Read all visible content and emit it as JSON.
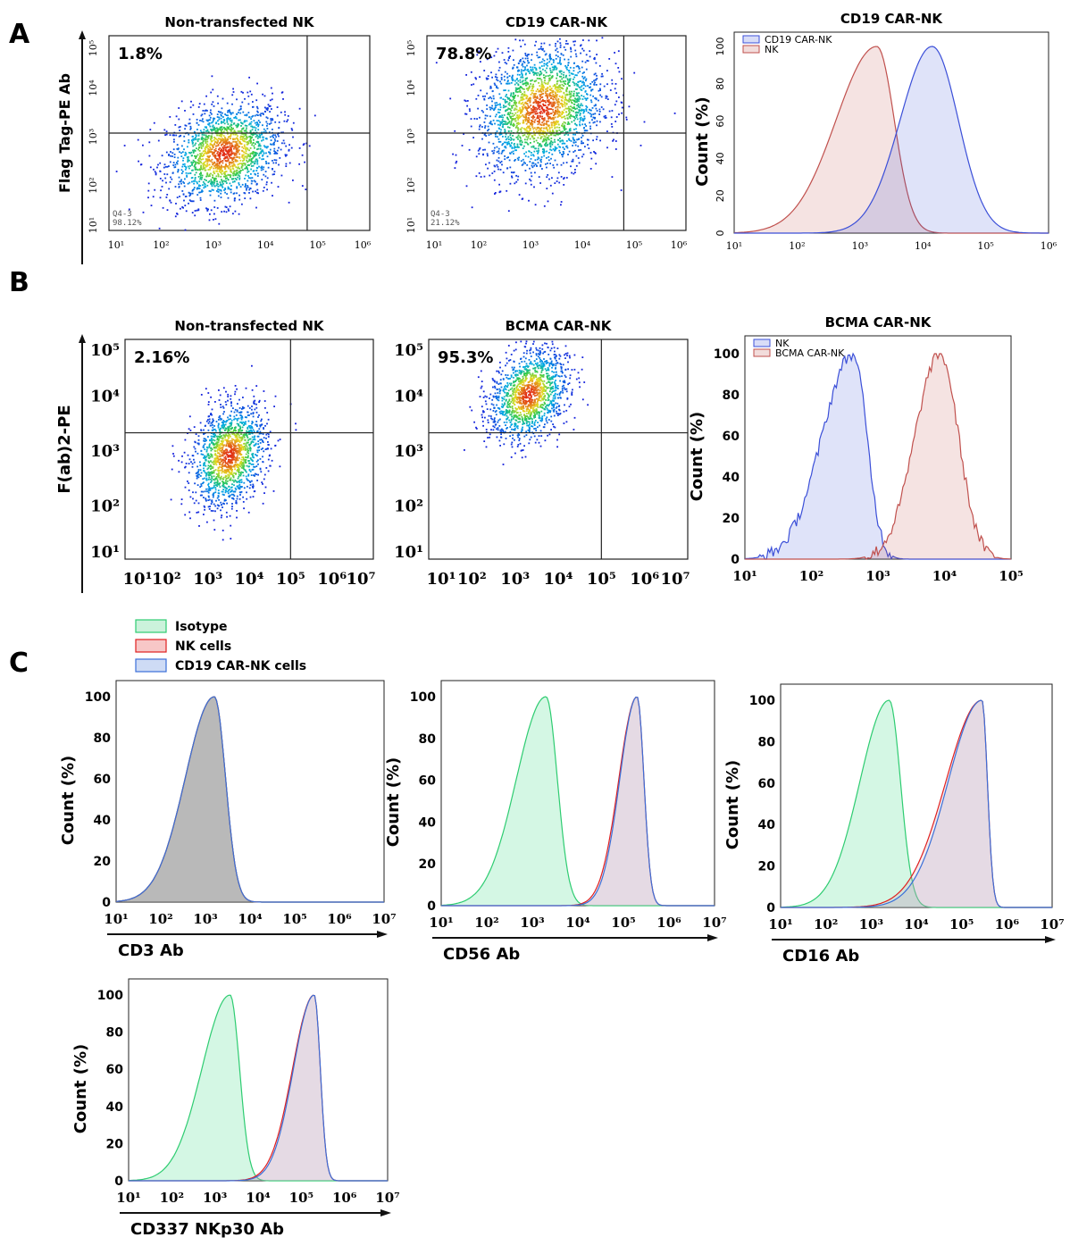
{
  "panels": {
    "A": "A",
    "B": "B",
    "C": "C"
  },
  "colors": {
    "nk_red": "#c0504d",
    "car_blue": "#3b4fd8",
    "isotype_green": "#2ecc71",
    "grid": "#222222"
  },
  "chart_data": [
    {
      "id": "A1",
      "type": "scatter",
      "title": "Non-transfected NK",
      "ylabel": "Flag Tag-PE Ab",
      "xlim_log10": [
        1,
        6
      ],
      "ylim_log10": [
        1,
        5
      ],
      "x_ticks": [
        "10¹",
        "10²",
        "10³",
        "10⁴",
        "10⁵",
        "10⁶"
      ],
      "y_ticks": [
        "10¹",
        "10²",
        "10³",
        "10⁴",
        "10⁵"
      ],
      "gate_x_log10": 4.8,
      "gate_y_log10": 3.0,
      "upper_left_percent": "1.8%",
      "gate_label": "Q4-3",
      "gate_percent": "98.12%",
      "cloud": {
        "center_x_log10": 3.2,
        "center_y_log10": 2.6,
        "spread_x": 0.55,
        "spread_y": 0.5,
        "points": 1800
      }
    },
    {
      "id": "A2",
      "type": "scatter",
      "title": "CD19 CAR-NK",
      "xlim_log10": [
        1,
        6
      ],
      "ylim_log10": [
        1,
        5
      ],
      "x_ticks": [
        "10¹",
        "10²",
        "10³",
        "10⁴",
        "10⁵",
        "10⁶"
      ],
      "y_ticks": [
        "10¹",
        "10²",
        "10³",
        "10⁴",
        "10⁵"
      ],
      "gate_x_log10": 4.8,
      "gate_y_log10": 3.0,
      "upper_left_percent": "78.8%",
      "gate_label": "Q4-3",
      "gate_percent": "21.12%",
      "cloud": {
        "center_x_log10": 3.2,
        "center_y_log10": 3.5,
        "spread_x": 0.6,
        "spread_y": 0.65,
        "points": 2200
      }
    },
    {
      "id": "A3",
      "type": "area",
      "title": "CD19 CAR-NK",
      "ylabel": "Count (%)",
      "xlim_log10": [
        0.6,
        6
      ],
      "x_ticks": [
        "10¹",
        "10²",
        "10³",
        "10⁴",
        "10⁵",
        "10⁶"
      ],
      "y_ticks": [
        "0",
        "20",
        "40",
        "60",
        "80",
        "100"
      ],
      "ylim": [
        0,
        100
      ],
      "legend": [
        "CD19 CAR-NK",
        "NK"
      ],
      "series": [
        {
          "name": "NK",
          "color": "#c0504d",
          "peak_log10": 3.05,
          "sigma_left": 0.7,
          "sigma_right": 0.3
        },
        {
          "name": "CD19 CAR-NK",
          "color": "#3b4fd8",
          "peak_log10": 4.0,
          "sigma_left": 0.55,
          "sigma_right": 0.45
        }
      ]
    },
    {
      "id": "B1",
      "type": "scatter",
      "title": "Non-transfected NK",
      "ylabel": "F(ab)2-PE",
      "xlim_log10": [
        1,
        7
      ],
      "ylim_log10": [
        1,
        5
      ],
      "x_ticks": [
        "10¹",
        "10²",
        "10³",
        "10⁴",
        "10⁵",
        "10⁶",
        "10⁷"
      ],
      "y_ticks": [
        "10¹",
        "10²",
        "10³",
        "10⁴",
        "10⁵"
      ],
      "gate_x_log10": 5.0,
      "gate_y_log10": 3.3,
      "upper_left_percent": "2.16%",
      "cloud": {
        "center_x_log10": 3.5,
        "center_y_log10": 2.9,
        "spread_x": 0.45,
        "spread_y": 0.45,
        "points": 1500
      }
    },
    {
      "id": "B2",
      "type": "scatter",
      "title": "BCMA CAR-NK",
      "xlim_log10": [
        1,
        7
      ],
      "ylim_log10": [
        1,
        5
      ],
      "x_ticks": [
        "10¹",
        "10²",
        "10³",
        "10⁴",
        "10⁵",
        "10⁶",
        "10⁷"
      ],
      "y_ticks": [
        "10¹",
        "10²",
        "10³",
        "10⁴",
        "10⁵"
      ],
      "gate_x_log10": 5.0,
      "gate_y_log10": 3.3,
      "upper_left_percent": "95.3%",
      "cloud": {
        "center_x_log10": 3.3,
        "center_y_log10": 4.0,
        "spread_x": 0.45,
        "spread_y": 0.4,
        "points": 1400
      }
    },
    {
      "id": "B3",
      "type": "area",
      "title": "BCMA CAR-NK",
      "ylabel": "Count (%)",
      "xlim_log10": [
        1,
        5.3
      ],
      "x_ticks": [
        "10¹",
        "10²",
        "10³",
        "10⁴",
        "10⁵"
      ],
      "y_ticks": [
        "0",
        "20",
        "40",
        "60",
        "80",
        "100"
      ],
      "ylim": [
        0,
        100
      ],
      "legend": [
        "NK",
        "BCMA CAR-NK"
      ],
      "series": [
        {
          "name": "NK",
          "color": "#3b4fd8",
          "peak_log10": 2.75,
          "sigma_left": 0.5,
          "sigma_right": 0.22
        },
        {
          "name": "BCMA CAR-NK",
          "color": "#c0504d",
          "peak_log10": 4.15,
          "sigma_left": 0.4,
          "sigma_right": 0.3
        }
      ]
    },
    {
      "id": "C1",
      "type": "area",
      "xlabel": "CD3 Ab",
      "ylabel": "Count (%)",
      "xlim_log10": [
        1,
        7
      ],
      "x_ticks": [
        "10¹",
        "10²",
        "10³",
        "10⁴",
        "10⁵",
        "10⁶",
        "10⁷"
      ],
      "y_ticks": [
        "0",
        "20",
        "40",
        "60",
        "80",
        "100"
      ],
      "ylim": [
        0,
        100
      ],
      "series": [
        {
          "name": "Isotype",
          "color": "#2ecc71",
          "peak_log10": 3.2,
          "sigma_left": 0.65,
          "sigma_right": 0.25
        },
        {
          "name": "NK cells",
          "color": "#e02020",
          "peak_log10": 3.2,
          "sigma_left": 0.65,
          "sigma_right": 0.25
        },
        {
          "name": "CD19 CAR-NK cells",
          "color": "#3b6fd8",
          "peak_log10": 3.2,
          "sigma_left": 0.65,
          "sigma_right": 0.25
        }
      ]
    },
    {
      "id": "C2",
      "type": "area",
      "xlabel": "CD56 Ab",
      "ylabel": "Count (%)",
      "xlim_log10": [
        1,
        7
      ],
      "x_ticks": [
        "10¹",
        "10²",
        "10³",
        "10⁴",
        "10⁵",
        "10⁶",
        "10⁷"
      ],
      "y_ticks": [
        "0",
        "20",
        "40",
        "60",
        "80",
        "100"
      ],
      "ylim": [
        0,
        100
      ],
      "series": [
        {
          "name": "Isotype",
          "color": "#2ecc71",
          "peak_log10": 3.3,
          "sigma_left": 0.65,
          "sigma_right": 0.25
        },
        {
          "name": "NK cells",
          "color": "#e02020",
          "peak_log10": 5.3,
          "sigma_left": 0.4,
          "sigma_right": 0.15
        },
        {
          "name": "CD19 CAR-NK cells",
          "color": "#3b6fd8",
          "peak_log10": 5.3,
          "sigma_left": 0.38,
          "sigma_right": 0.15
        }
      ]
    },
    {
      "id": "C3",
      "type": "area",
      "xlabel": "CD16 Ab",
      "ylabel": "Count (%)",
      "xlim_log10": [
        1,
        7
      ],
      "x_ticks": [
        "10¹",
        "10²",
        "10³",
        "10⁴",
        "10⁵",
        "10⁶",
        "10⁷"
      ],
      "y_ticks": [
        "0",
        "20",
        "40",
        "60",
        "80",
        "100"
      ],
      "ylim": [
        0,
        100
      ],
      "series": [
        {
          "name": "Isotype",
          "color": "#2ecc71",
          "peak_log10": 3.4,
          "sigma_left": 0.65,
          "sigma_right": 0.25
        },
        {
          "name": "NK cells",
          "color": "#e02020",
          "peak_log10": 5.45,
          "sigma_left": 0.8,
          "sigma_right": 0.12
        },
        {
          "name": "CD19 CAR-NK cells",
          "color": "#3b6fd8",
          "peak_log10": 5.45,
          "sigma_left": 0.75,
          "sigma_right": 0.12
        }
      ]
    },
    {
      "id": "C4",
      "type": "area",
      "xlabel": "CD337 NKp30 Ab",
      "ylabel": "Count (%)",
      "xlim_log10": [
        1,
        7
      ],
      "x_ticks": [
        "10¹",
        "10²",
        "10³",
        "10⁴",
        "10⁵",
        "10⁶",
        "10⁷"
      ],
      "y_ticks": [
        "0",
        "20",
        "40",
        "60",
        "80",
        "100"
      ],
      "ylim": [
        0,
        100
      ],
      "series": [
        {
          "name": "Isotype",
          "color": "#2ecc71",
          "peak_log10": 3.35,
          "sigma_left": 0.65,
          "sigma_right": 0.22
        },
        {
          "name": "NK cells",
          "color": "#e02020",
          "peak_log10": 5.3,
          "sigma_left": 0.5,
          "sigma_right": 0.14
        },
        {
          "name": "CD19 CAR-NK cells",
          "color": "#3b6fd8",
          "peak_log10": 5.3,
          "sigma_left": 0.48,
          "sigma_right": 0.14
        }
      ]
    }
  ],
  "legend_C": [
    {
      "label": "Isotype",
      "color": "#2ecc71"
    },
    {
      "label": "NK cells",
      "color": "#e02020"
    },
    {
      "label": "CD19 CAR-NK cells",
      "color": "#3b6fd8"
    }
  ]
}
